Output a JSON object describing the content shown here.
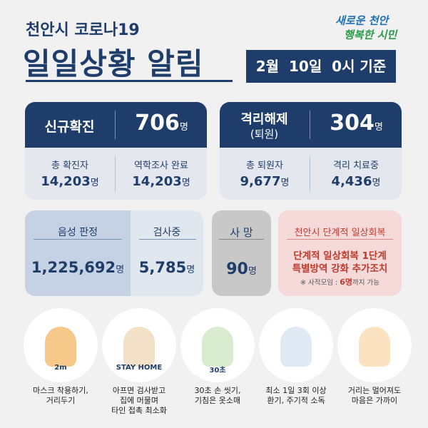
{
  "header": {
    "subtitle": "천안시 코로나19",
    "title": "일일상황 알림",
    "date": "2월  10일  0시 기준",
    "logo_top": "새로운 천안",
    "logo_bottom": "행복한 시민"
  },
  "confirmed": {
    "label": "신규확진",
    "value": "706",
    "unit": "명",
    "items": [
      {
        "label": "총 확진자",
        "value": "14,203",
        "unit": "명"
      },
      {
        "label": "역학조사 완료",
        "value": "14,203",
        "unit": "명"
      }
    ]
  },
  "released": {
    "label": "격리해제",
    "sublabel": "(퇴원)",
    "value": "304",
    "unit": "명",
    "items": [
      {
        "label": "총 퇴원자",
        "value": "9,677",
        "unit": "명"
      },
      {
        "label": "격리 치료중",
        "value": "4,436",
        "unit": "명"
      }
    ]
  },
  "tests": [
    {
      "label": "음성 판정",
      "value": "1,225,692",
      "unit": "명"
    },
    {
      "label": "검사중",
      "value": "5,785",
      "unit": "명"
    }
  ],
  "deaths": {
    "label": "사 망",
    "value": "90",
    "unit": "명"
  },
  "notice": {
    "title": "천안시 단계적 일상회복",
    "line1": "단계적 일상회복 1단계",
    "line2": "특별방역 강화 추가조치",
    "note_prefix": "※ 사적모임 : ",
    "note_highlight": "6명",
    "note_suffix": "까지 가능"
  },
  "tips": [
    {
      "caption": [
        "마스크 착용하기,",
        "거리두기"
      ],
      "badge": "2m"
    },
    {
      "caption": [
        "아프면 검사받고",
        "집에 머물며",
        "타인 접촉 최소화"
      ],
      "badge": "STAY HOME"
    },
    {
      "caption": [
        "30초 손 씻기,",
        "기침은 옷소매"
      ],
      "badge": "30초"
    },
    {
      "caption": [
        "최소 1일 3회 이상",
        "환기, 주기적 소독"
      ]
    },
    {
      "caption": [
        "거리는 멀어져도",
        "마음은 가까이"
      ]
    }
  ]
}
